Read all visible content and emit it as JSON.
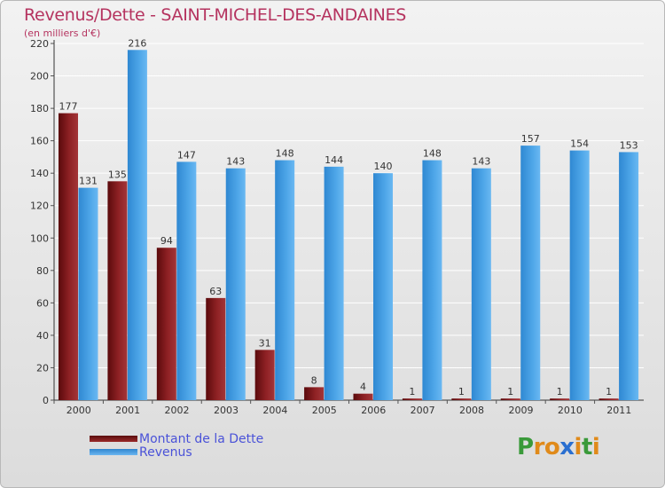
{
  "title": "Revenus/Dette - SAINT-MICHEL-DES-ANDAINES",
  "subtitle": "(en milliers d'€)",
  "chart_data": {
    "type": "bar",
    "categories": [
      "2000",
      "2001",
      "2002",
      "2003",
      "2004",
      "2005",
      "2006",
      "2007",
      "2008",
      "2009",
      "2010",
      "2011"
    ],
    "series": [
      {
        "name": "Montant de la Dette",
        "values": [
          177,
          135,
          94,
          63,
          31,
          8,
          4,
          1,
          1,
          1,
          1,
          1
        ],
        "color": "#7a1416"
      },
      {
        "name": "Revenus",
        "values": [
          131,
          216,
          147,
          143,
          148,
          144,
          140,
          148,
          143,
          157,
          154,
          153
        ],
        "color": "#3f9ae0"
      }
    ],
    "yticks": [
      0,
      20,
      40,
      60,
      80,
      100,
      120,
      140,
      160,
      180,
      200,
      220
    ],
    "ylim": [
      0,
      220
    ],
    "grid": true,
    "legend_position": "bottom-left"
  },
  "legend": {
    "debt_label": "Montant de la Dette",
    "revenue_label": "Revenus"
  },
  "logo": {
    "letters": [
      "P",
      "r",
      "o",
      "x",
      "i",
      "t",
      "i"
    ],
    "colors": [
      "#3a9a3a",
      "#e08a1a",
      "#e08a1a",
      "#2a6fd0",
      "#e08a1a",
      "#3a9a3a",
      "#e08a1a"
    ]
  }
}
